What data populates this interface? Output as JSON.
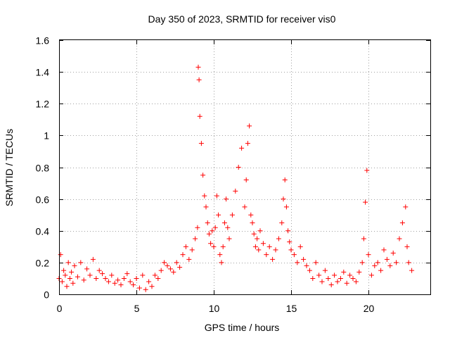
{
  "chart_data": {
    "type": "scatter",
    "title": "Day 350 of 2023, SRMTID for receiver vis0",
    "xlabel": "GPS time / hours",
    "ylabel": "SRMTID / TECUs",
    "xlim": [
      0,
      24
    ],
    "ylim": [
      0,
      1.6
    ],
    "xticks": [
      0,
      5,
      10,
      15,
      20
    ],
    "yticks": [
      0,
      0.2,
      0.4,
      0.6,
      0.8,
      1,
      1.2,
      1.4,
      1.6
    ],
    "xtick_labels": [
      "0",
      "5",
      "10",
      "15",
      "20"
    ],
    "ytick_labels": [
      "0",
      "0.2",
      "0.4",
      "0.6",
      "0.8",
      "1",
      "1.2",
      "1.4",
      "1.6"
    ],
    "grid": true,
    "marker": "+",
    "color": "#ff0000",
    "x": [
      0.0,
      0.1,
      0.2,
      0.3,
      0.4,
      0.5,
      0.6,
      0.7,
      0.8,
      0.9,
      1.0,
      1.2,
      1.4,
      1.6,
      1.8,
      2.0,
      2.2,
      2.4,
      2.6,
      2.8,
      3.0,
      3.2,
      3.4,
      3.6,
      3.8,
      4.0,
      4.2,
      4.4,
      4.6,
      4.8,
      5.0,
      5.2,
      5.4,
      5.6,
      5.8,
      6.0,
      6.2,
      6.4,
      6.6,
      6.8,
      7.0,
      7.2,
      7.4,
      7.6,
      7.8,
      8.0,
      8.2,
      8.4,
      8.6,
      8.8,
      8.95,
      9.0,
      9.05,
      9.1,
      9.2,
      9.3,
      9.4,
      9.5,
      9.6,
      9.7,
      9.8,
      9.9,
      10.0,
      10.1,
      10.2,
      10.3,
      10.4,
      10.5,
      10.6,
      10.7,
      10.8,
      10.9,
      11.0,
      11.2,
      11.4,
      11.6,
      11.8,
      12.0,
      12.1,
      12.2,
      12.3,
      12.4,
      12.5,
      12.6,
      12.7,
      12.8,
      12.9,
      13.0,
      13.2,
      13.4,
      13.6,
      13.8,
      14.0,
      14.2,
      14.4,
      14.5,
      14.6,
      14.7,
      14.8,
      14.9,
      15.0,
      15.2,
      15.4,
      15.6,
      15.8,
      16.0,
      16.2,
      16.4,
      16.6,
      16.8,
      17.0,
      17.2,
      17.4,
      17.6,
      17.8,
      18.0,
      18.2,
      18.4,
      18.6,
      18.8,
      19.0,
      19.2,
      19.4,
      19.6,
      19.7,
      19.8,
      19.9,
      20.0,
      20.2,
      20.4,
      20.6,
      20.8,
      21.0,
      21.2,
      21.4,
      21.6,
      21.8,
      22.0,
      22.2,
      22.4,
      22.5,
      22.6,
      22.8
    ],
    "y": [
      0.1,
      0.25,
      0.08,
      0.15,
      0.12,
      0.05,
      0.2,
      0.1,
      0.14,
      0.07,
      0.18,
      0.11,
      0.2,
      0.09,
      0.16,
      0.12,
      0.22,
      0.1,
      0.15,
      0.13,
      0.1,
      0.08,
      0.12,
      0.07,
      0.09,
      0.06,
      0.1,
      0.13,
      0.08,
      0.06,
      0.1,
      0.04,
      0.12,
      0.03,
      0.08,
      0.05,
      0.12,
      0.1,
      0.15,
      0.2,
      0.18,
      0.16,
      0.14,
      0.2,
      0.17,
      0.25,
      0.3,
      0.22,
      0.28,
      0.35,
      0.42,
      1.43,
      1.35,
      1.12,
      0.95,
      0.75,
      0.62,
      0.55,
      0.45,
      0.38,
      0.32,
      0.4,
      0.3,
      0.42,
      0.62,
      0.5,
      0.25,
      0.2,
      0.3,
      0.45,
      0.6,
      0.42,
      0.35,
      0.5,
      0.65,
      0.8,
      0.92,
      0.55,
      0.72,
      0.95,
      1.06,
      0.5,
      0.45,
      0.38,
      0.3,
      0.35,
      0.28,
      0.4,
      0.32,
      0.25,
      0.3,
      0.22,
      0.28,
      0.35,
      0.45,
      0.6,
      0.72,
      0.55,
      0.4,
      0.33,
      0.28,
      0.25,
      0.2,
      0.3,
      0.22,
      0.18,
      0.15,
      0.1,
      0.2,
      0.12,
      0.08,
      0.15,
      0.1,
      0.06,
      0.12,
      0.08,
      0.1,
      0.14,
      0.07,
      0.12,
      0.1,
      0.08,
      0.14,
      0.2,
      0.35,
      0.58,
      0.78,
      0.25,
      0.12,
      0.18,
      0.2,
      0.15,
      0.28,
      0.22,
      0.18,
      0.26,
      0.2,
      0.35,
      0.45,
      0.55,
      0.3,
      0.2,
      0.15
    ]
  }
}
